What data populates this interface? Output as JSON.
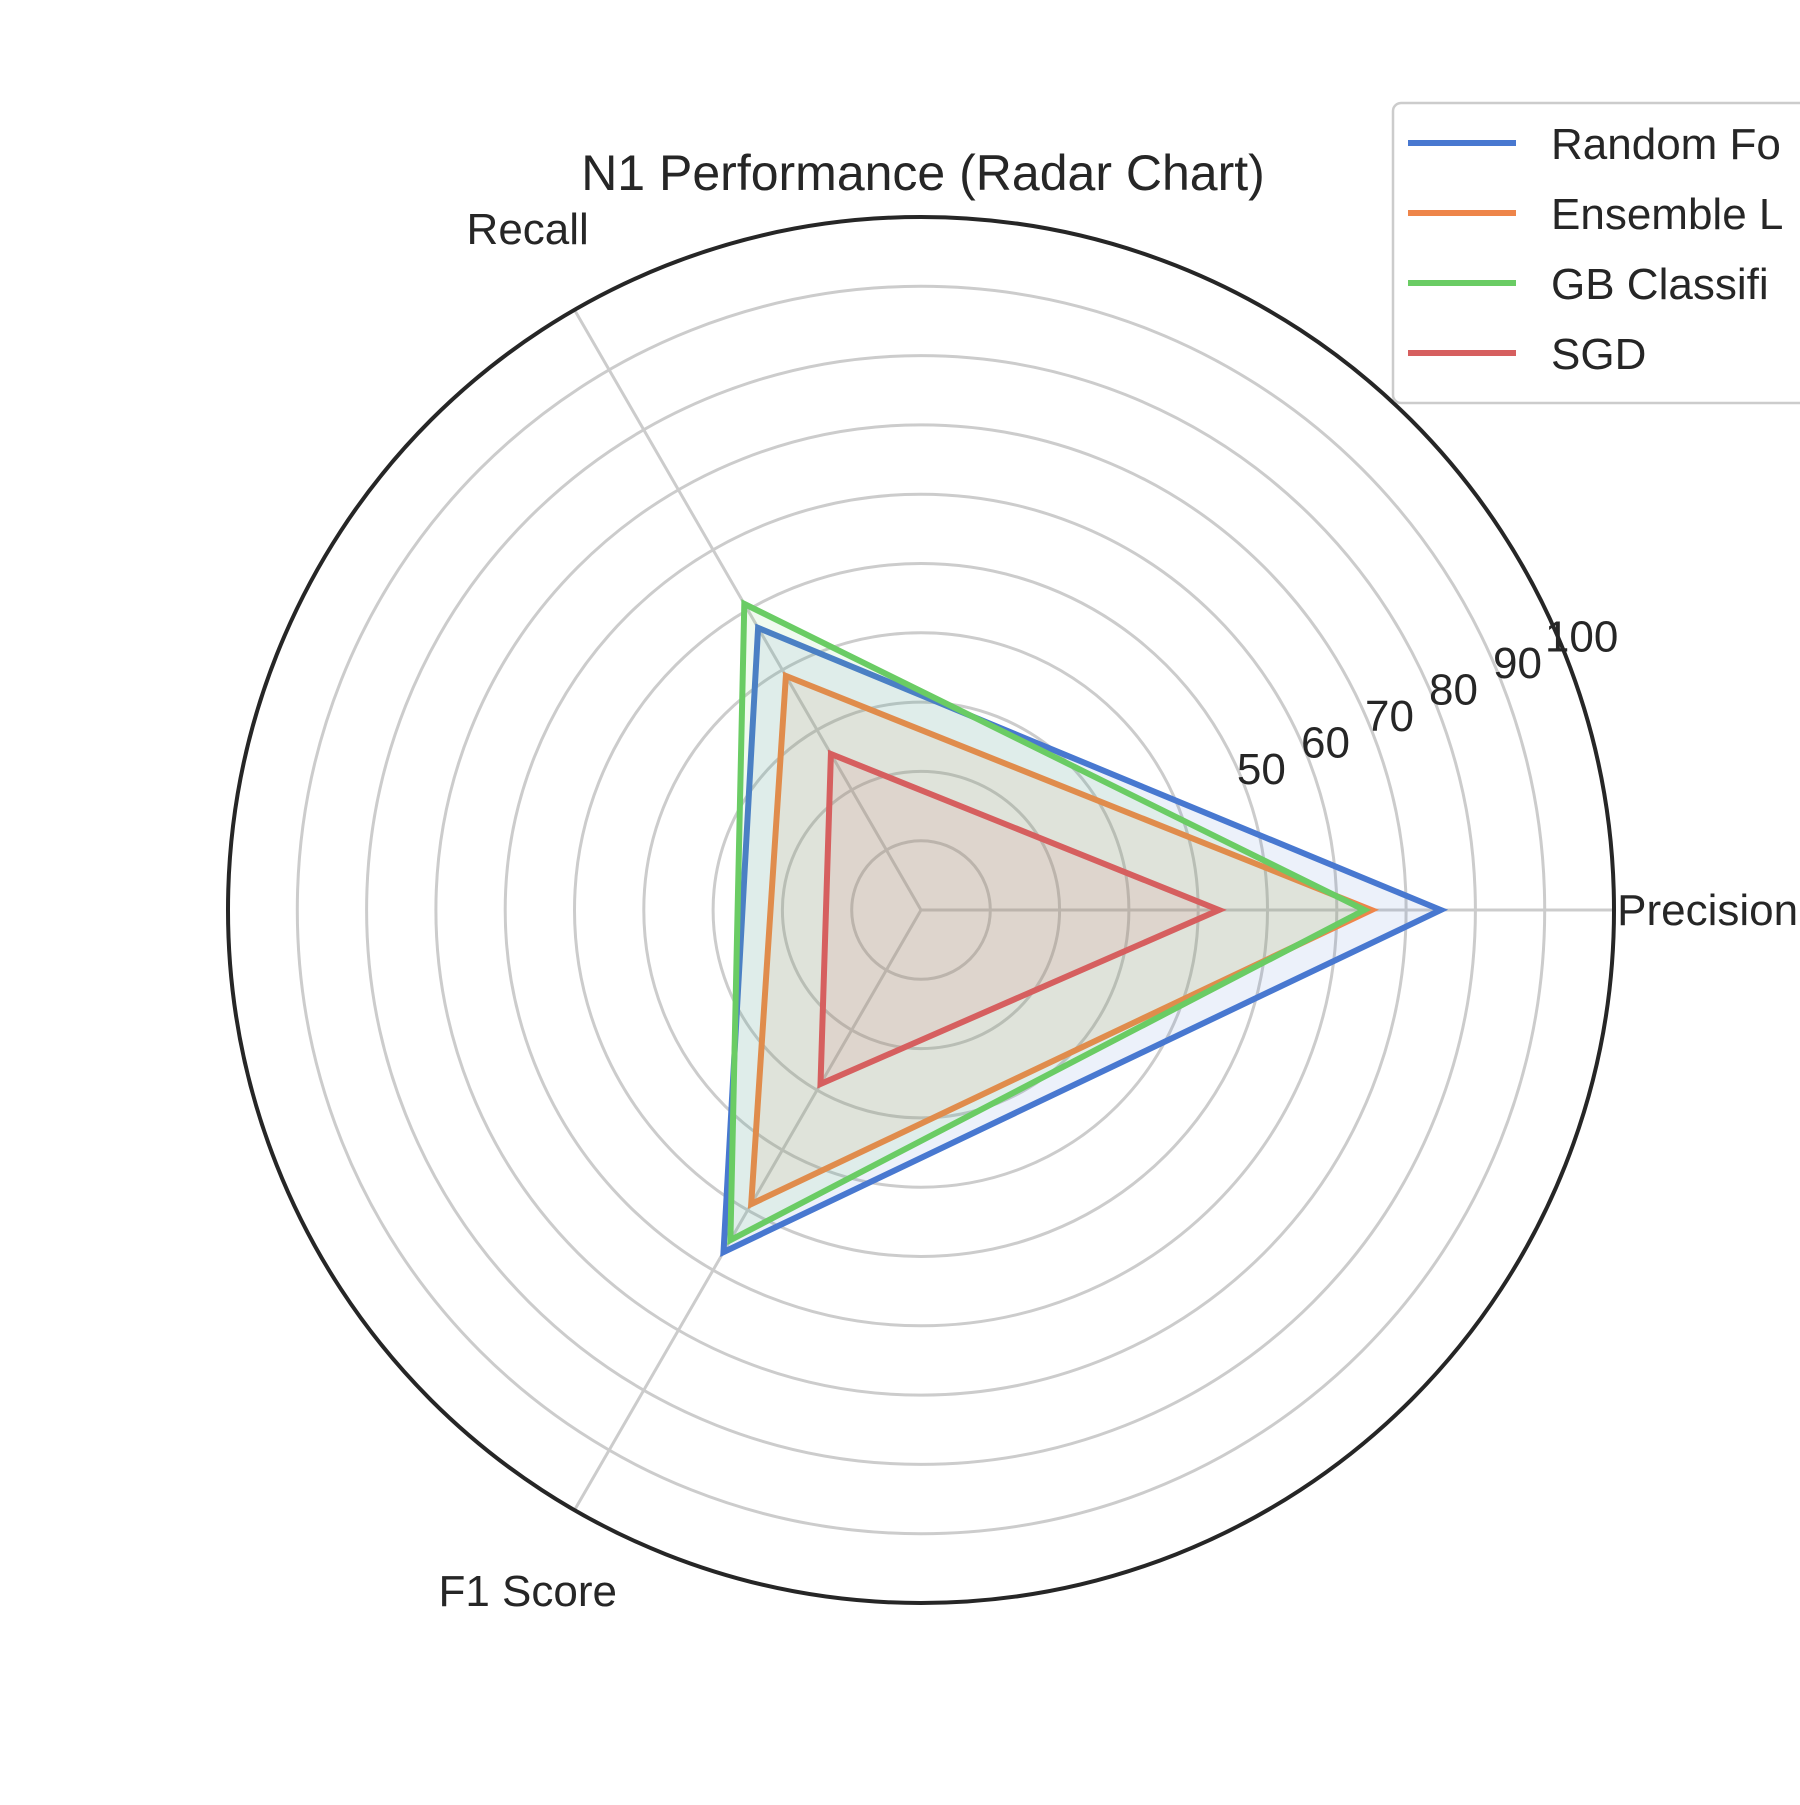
{
  "chart_data": {
    "type": "radar",
    "title": "N1 Performance (Radar Chart)",
    "axes": [
      "Precision",
      "Recall",
      "F1 Score"
    ],
    "radial_ticks": [
      50,
      60,
      70,
      80,
      90,
      100
    ],
    "rlim": [
      0,
      100
    ],
    "grid": true,
    "legend_position": "top-right",
    "series": [
      {
        "name": "Random Forest",
        "legend_text": "Random Fo",
        "color": "#4878d0",
        "values": [
          75,
          47,
          57
        ]
      },
      {
        "name": "Ensemble Learning",
        "legend_text": "Ensemble L",
        "color": "#ee854a",
        "values": [
          65,
          39,
          49
        ]
      },
      {
        "name": "GB Classifier",
        "legend_text": "GB Classifi",
        "color": "#6acc64",
        "values": [
          64,
          51,
          55
        ]
      },
      {
        "name": "SGD",
        "legend_text": "SGD",
        "color": "#d65f5f",
        "values": [
          43,
          26,
          29
        ]
      }
    ]
  }
}
